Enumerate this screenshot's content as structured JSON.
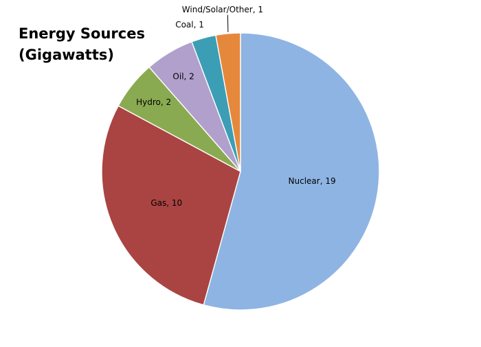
{
  "chart_data": {
    "type": "pie",
    "title_lines": [
      "Energy Sources",
      "(Gigawatts)"
    ],
    "slices": [
      {
        "label": "Nuclear",
        "value": 19,
        "display": "Nuclear, 19",
        "color": "#8EB4E3"
      },
      {
        "label": "Gas",
        "value": 10,
        "display": "Gas, 10",
        "color": "#A94442"
      },
      {
        "label": "Hydro",
        "value": 2,
        "display": "Hydro, 2",
        "color": "#8AAA51"
      },
      {
        "label": "Oil",
        "value": 2,
        "display": "Oil, 2",
        "color": "#B0A0CB"
      },
      {
        "label": "Coal",
        "value": 1,
        "display": "Coal, 1",
        "color": "#3C9EB5"
      },
      {
        "label": "Wind/Solar/Other",
        "value": 1,
        "display": "Wind/Solar/Other, 1",
        "color": "#E6883C"
      }
    ]
  }
}
